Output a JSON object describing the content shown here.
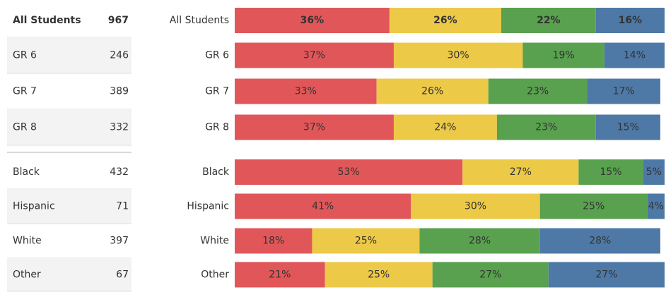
{
  "chart_data": {
    "type": "bar",
    "orientation": "horizontal",
    "stacked": true,
    "categories": [
      "All Students",
      "GR 6",
      "GR 7",
      "GR 8",
      "Black",
      "Hispanic",
      "White",
      "Other"
    ],
    "xlim": [
      0,
      100
    ],
    "series": [
      {
        "color": "#e15759",
        "values": [
          36,
          37,
          33,
          37,
          53,
          41,
          18,
          21
        ],
        "value_labels": [
          "36%",
          "37%",
          "33%",
          "37%",
          "53%",
          "41%",
          "18%",
          "21%"
        ]
      },
      {
        "color": "#edc948",
        "values": [
          26,
          30,
          26,
          24,
          27,
          30,
          25,
          25
        ],
        "value_labels": [
          "26%",
          "30%",
          "26%",
          "24%",
          "27%",
          "30%",
          "25%",
          "25%"
        ]
      },
      {
        "color": "#59a14f",
        "values": [
          22,
          19,
          23,
          23,
          15,
          25,
          28,
          27
        ],
        "value_labels": [
          "22%",
          "19%",
          "23%",
          "23%",
          "15%",
          "25%",
          "28%",
          "27%"
        ]
      },
      {
        "color": "#4e79a7",
        "values": [
          16,
          14,
          17,
          15,
          5,
          4,
          28,
          27
        ],
        "value_labels": [
          "16%",
          "14%",
          "17%",
          "15%",
          "5%",
          "4%",
          "28%",
          "27%"
        ]
      }
    ]
  },
  "table": {
    "counts": [
      967,
      246,
      389,
      332,
      432,
      71,
      397,
      67
    ]
  }
}
